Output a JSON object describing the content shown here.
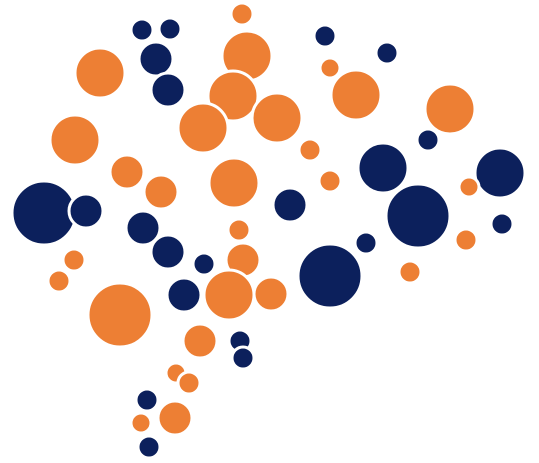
{
  "artwork": {
    "kind": "dot-cluster-logo",
    "colors": {
      "orange": "#ED7F34",
      "navy": "#0C205C",
      "background": "#FFFFFF"
    }
  }
}
